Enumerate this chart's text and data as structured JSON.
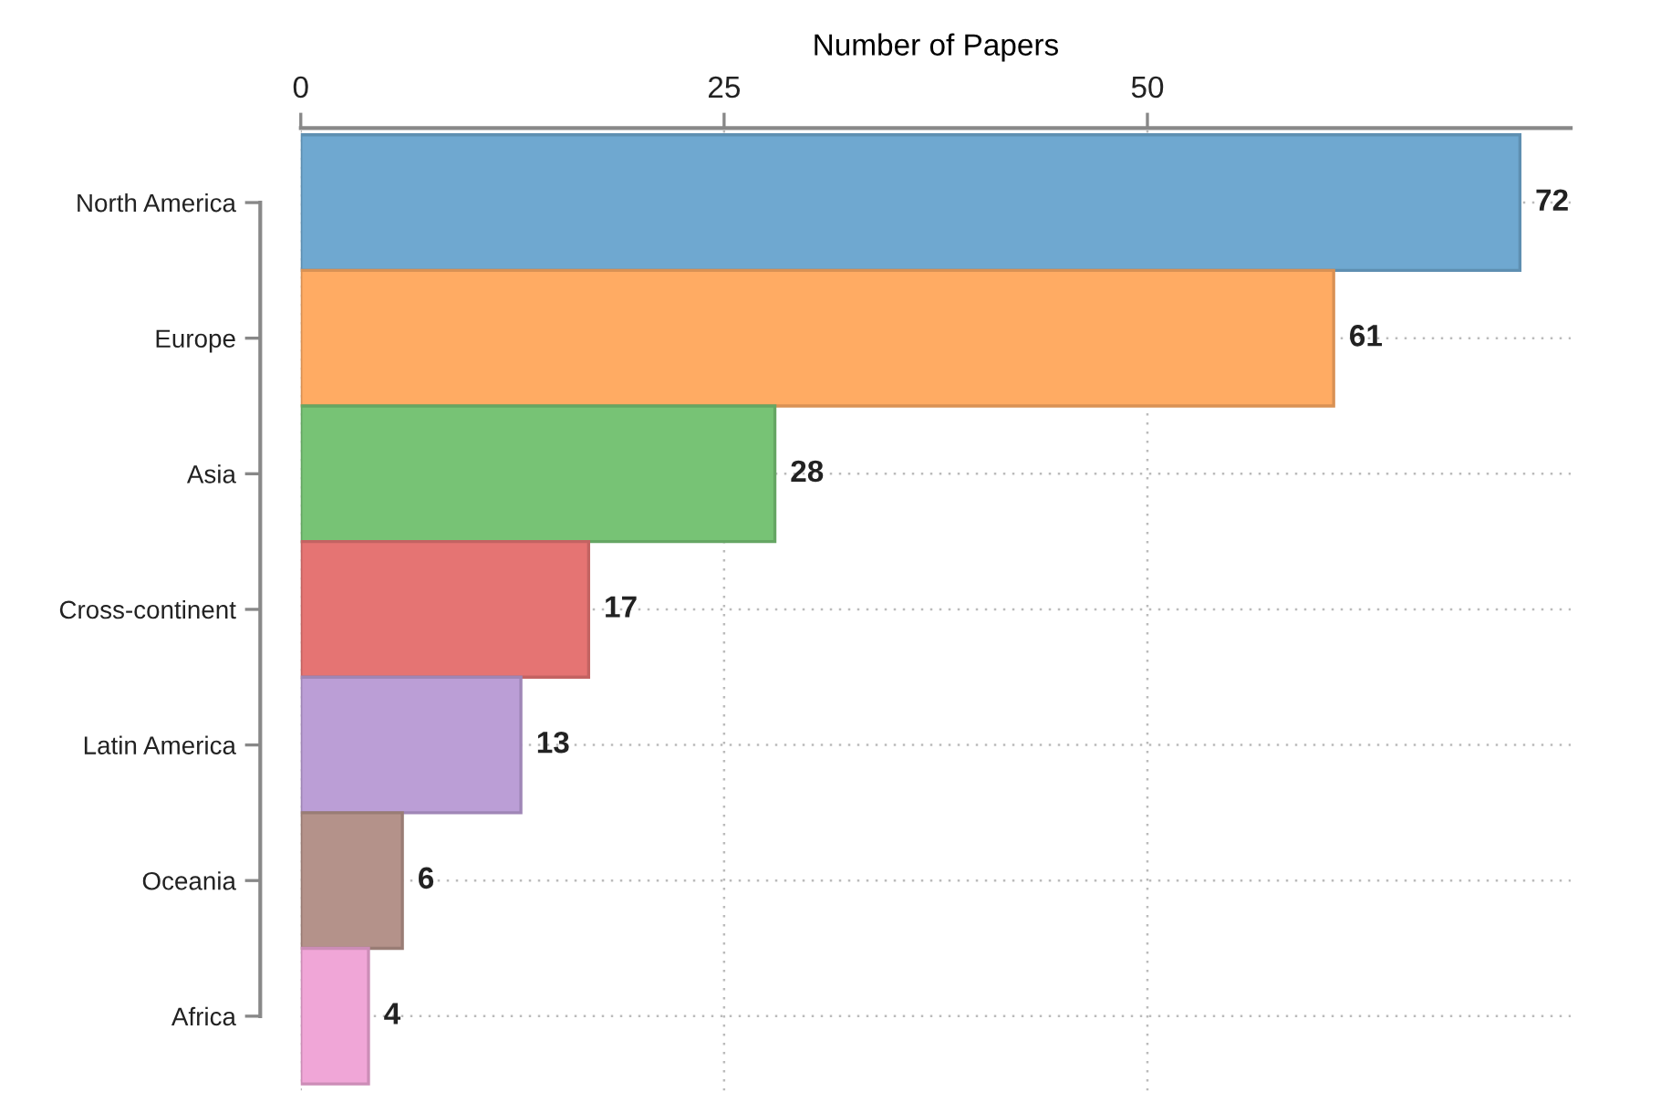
{
  "chart_data": {
    "type": "bar",
    "orientation": "horizontal",
    "xlabel": "Number of Papers",
    "categories": [
      "North America",
      "Europe",
      "Asia",
      "Cross-continent",
      "Latin America",
      "Oceania",
      "Africa"
    ],
    "values": [
      72,
      61,
      28,
      17,
      13,
      6,
      4
    ],
    "colors": [
      "#6fa8d0",
      "#ffab63",
      "#77c375",
      "#e57473",
      "#bb9ed6",
      "#b4928a",
      "#f0a6d7"
    ],
    "xlim": [
      0,
      75
    ],
    "xticks": [
      0,
      25,
      50
    ],
    "grid": true,
    "data_labels": true
  }
}
